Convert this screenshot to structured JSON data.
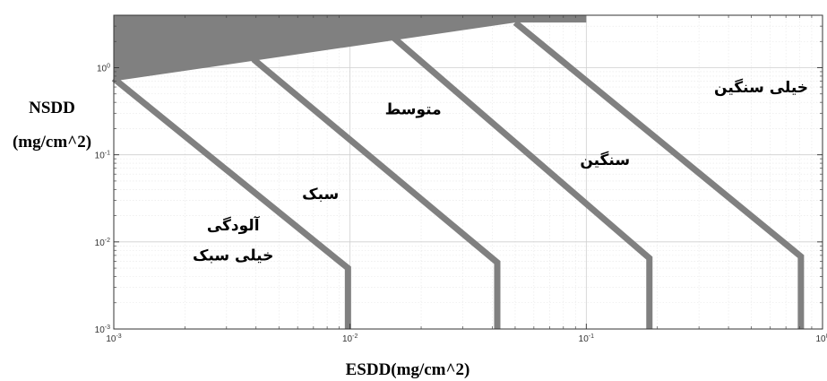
{
  "chart_data": {
    "type": "line",
    "xscale": "log",
    "yscale": "log",
    "xlim": [
      0.001,
      1
    ],
    "ylim": [
      0.001,
      4
    ],
    "xlabel": "ESDD(mg/cm^2)",
    "ylabel": [
      "NSDD",
      "(mg/cm^2)"
    ],
    "xticks": [
      {
        "value": 0.001,
        "base": "10",
        "exp": "-3"
      },
      {
        "value": 0.01,
        "base": "10",
        "exp": "-2"
      },
      {
        "value": 0.1,
        "base": "10",
        "exp": "-1"
      },
      {
        "value": 1,
        "base": "10",
        "exp": "0"
      }
    ],
    "yticks": [
      {
        "value": 0.001,
        "base": "10",
        "exp": "-3"
      },
      {
        "value": 0.01,
        "base": "10",
        "exp": "-2"
      },
      {
        "value": 0.1,
        "base": "10",
        "exp": "-1"
      },
      {
        "value": 1,
        "base": "10",
        "exp": "0"
      }
    ],
    "grid": true,
    "series": [
      {
        "points": [
          [
            0.001,
            0.75
          ],
          [
            0.0098,
            0.005
          ],
          [
            0.0098,
            0.001
          ]
        ]
      },
      {
        "points": [
          [
            0.0039,
            1.25
          ],
          [
            0.042,
            0.0058
          ],
          [
            0.042,
            0.001
          ]
        ]
      },
      {
        "points": [
          [
            0.0145,
            2.5
          ],
          [
            0.185,
            0.0065
          ],
          [
            0.185,
            0.001
          ]
        ]
      },
      {
        "points": [
          [
            0.05,
            3.3
          ],
          [
            0.81,
            0.0068
          ],
          [
            0.81,
            0.001
          ]
        ]
      }
    ],
    "shaded_region": {
      "points": [
        [
          0.001,
          4
        ],
        [
          0.1,
          4
        ],
        [
          0.1,
          3.3
        ],
        [
          0.05,
          3.3
        ],
        [
          0.001,
          0.7
        ]
      ]
    },
    "line_color": "#808080",
    "fill_color": "#808080",
    "annotations": [
      {
        "text": "آلودگی",
        "x": 0.0032,
        "y": 0.0135
      },
      {
        "text": "خیلی سبک",
        "x": 0.0032,
        "y": 0.0061
      },
      {
        "text": "سبک",
        "x": 0.0075,
        "y": 0.031
      },
      {
        "text": "متوسط",
        "x": 0.0185,
        "y": 0.29
      },
      {
        "text": "سنگین",
        "x": 0.12,
        "y": 0.076
      },
      {
        "text": "خیلی سنگین",
        "x": 0.55,
        "y": 0.52
      }
    ]
  }
}
